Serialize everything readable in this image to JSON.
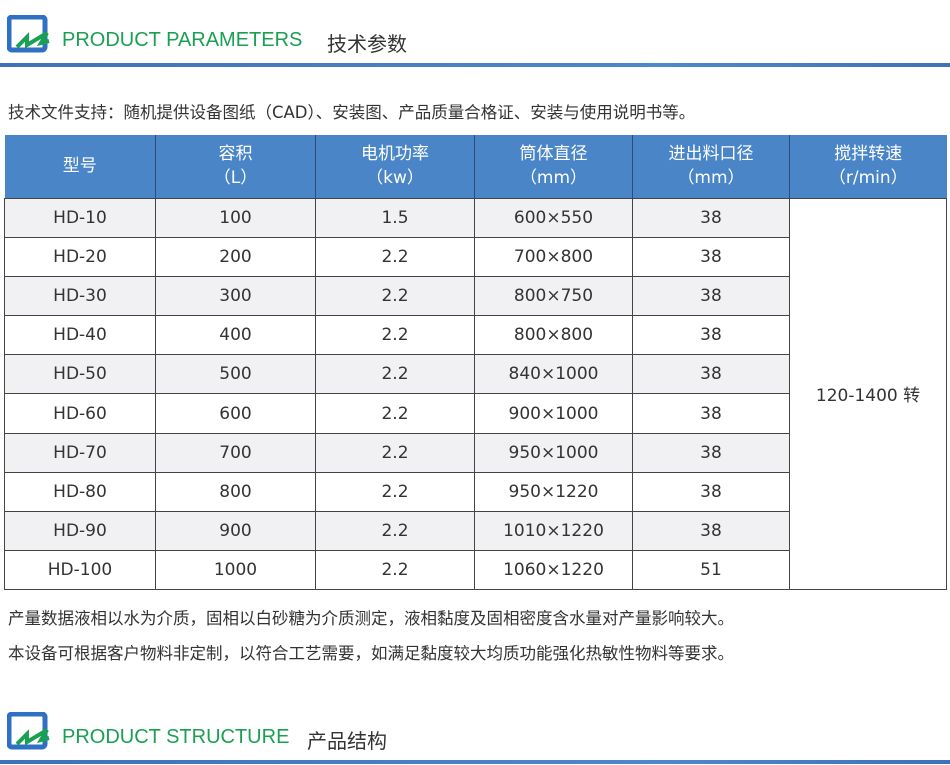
{
  "section1": {
    "title_en": "PRODUCT PARAMETERS",
    "title_cn": "技术参数"
  },
  "intro": "技术文件支持：随机提供设备图纸（CAD）、安装图、产品质量合格证、安装与使用说明书等。",
  "table": {
    "headers": [
      [
        "型号",
        ""
      ],
      [
        "容积",
        "（L）"
      ],
      [
        "电机功率",
        "（kw）"
      ],
      [
        "筒体直径",
        "（mm）"
      ],
      [
        "进出料口径",
        "（mm）"
      ],
      [
        "搅拌转速",
        "（r/min）"
      ]
    ],
    "rows": [
      [
        "HD-10",
        "100",
        "1.5",
        "600×550",
        "38"
      ],
      [
        "HD-20",
        "200",
        "2.2",
        "700×800",
        "38"
      ],
      [
        "HD-30",
        "300",
        "2.2",
        "800×750",
        "38"
      ],
      [
        "HD-40",
        "400",
        "2.2",
        "800×800",
        "38"
      ],
      [
        "HD-50",
        "500",
        "2.2",
        "840×1000",
        "38"
      ],
      [
        "HD-60",
        "600",
        "2.2",
        "900×1000",
        "38"
      ],
      [
        "HD-70",
        "700",
        "2.2",
        "950×1000",
        "38"
      ],
      [
        "HD-80",
        "800",
        "2.2",
        "950×1220",
        "38"
      ],
      [
        "HD-90",
        "900",
        "2.2",
        "1010×1220",
        "38"
      ],
      [
        "HD-100",
        "1000",
        "2.2",
        "1060×1220",
        "51"
      ]
    ],
    "speed": "120-1400 转"
  },
  "notes": [
    "产量数据液相以水为介质，固相以白砂糖为介质测定，液相黏度及固相密度含水量对产量影响较大。",
    "本设备可根据客户物料非定制，以符合工艺需要，如满足黏度较大均质功能强化热敏性物料等要求。"
  ],
  "section2": {
    "title_en": "PRODUCT STRUCTURE",
    "title_cn": "产品结构"
  },
  "colors": {
    "accent_green": "#1aa052",
    "header_blue": "#4a86c7",
    "rule_blue": "#3d72b8"
  }
}
